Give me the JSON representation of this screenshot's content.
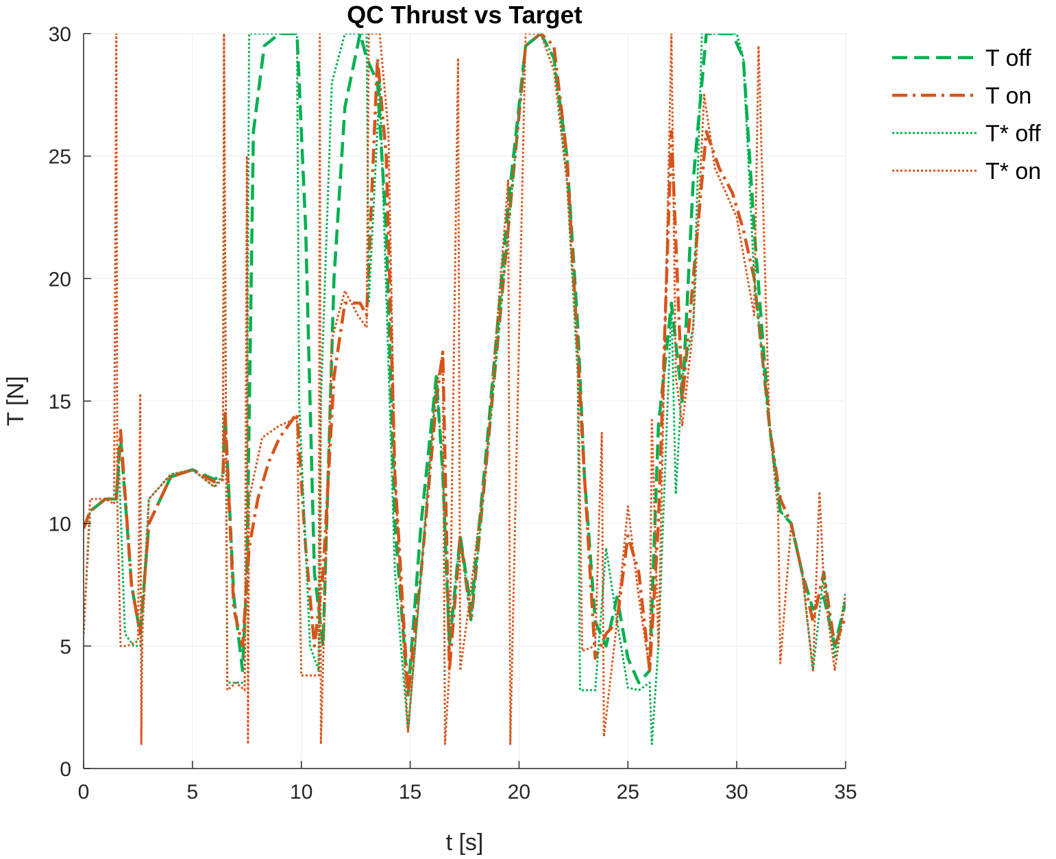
{
  "chart_data": {
    "type": "line",
    "title": "QC Thrust vs Target",
    "xlabel": "t [s]",
    "ylabel": "T [N]",
    "xlim": [
      0,
      35
    ],
    "ylim": [
      0,
      30
    ],
    "xticks": [
      0,
      5,
      10,
      15,
      20,
      25,
      30,
      35
    ],
    "yticks": [
      0,
      5,
      10,
      15,
      20,
      25,
      30
    ],
    "grid": true,
    "legend_position": "outside-top-right",
    "series": [
      {
        "name": "T off",
        "color": "#00b050",
        "style": "dashed",
        "x": [
          0,
          0.3,
          1,
          1.5,
          1.7,
          2.2,
          2.6,
          3.0,
          4.0,
          5.0,
          6.0,
          6.4,
          6.5,
          6.9,
          7.3,
          7.5,
          7.8,
          8.3,
          9.0,
          9.8,
          10.2,
          10.6,
          11.0,
          11.5,
          12.0,
          12.7,
          13.0,
          13.5,
          13.9,
          14.3,
          14.9,
          15.5,
          16.2,
          16.5,
          16.8,
          17.3,
          17.8,
          18.5,
          19.5,
          20.3,
          21.0,
          21.6,
          22.2,
          22.7,
          23.0,
          23.5,
          24.0,
          24.5,
          25.0,
          25.5,
          26.0,
          26.4,
          27.0,
          27.5,
          28.0,
          28.6,
          29.2,
          29.8,
          30.3,
          30.8,
          31.5,
          32.0,
          32.5,
          33.0,
          33.5,
          34.0,
          34.5,
          35.0
        ],
        "y": [
          9.8,
          10.5,
          11.0,
          11.0,
          13.5,
          7.5,
          5.5,
          10.0,
          11.9,
          12.2,
          11.8,
          12.0,
          14.5,
          7.0,
          4.0,
          8.0,
          26.0,
          29.5,
          30.0,
          30.0,
          22.0,
          8.0,
          5.0,
          20.0,
          27.0,
          30.0,
          29.0,
          28.0,
          22.0,
          10.0,
          3.0,
          10.0,
          16.0,
          12.0,
          5.0,
          9.5,
          6.5,
          13.0,
          23.0,
          29.5,
          30.0,
          29.0,
          25.0,
          18.0,
          12.0,
          6.0,
          5.0,
          7.0,
          4.5,
          3.5,
          4.0,
          14.0,
          19.0,
          15.0,
          24.0,
          30.0,
          30.0,
          30.0,
          29.0,
          22.0,
          14.0,
          10.5,
          10.0,
          8.0,
          6.5,
          7.0,
          5.0,
          6.8
        ]
      },
      {
        "name": "T on",
        "color": "#d95319",
        "style": "dashdot",
        "x": [
          0,
          0.3,
          1,
          1.5,
          1.7,
          2.2,
          2.6,
          3.0,
          4.0,
          5.0,
          6.0,
          6.4,
          6.5,
          6.9,
          7.3,
          7.6,
          8.0,
          8.5,
          9.0,
          9.8,
          10.2,
          10.6,
          11.0,
          11.5,
          12.0,
          12.7,
          13.0,
          13.5,
          13.9,
          14.3,
          14.9,
          15.5,
          16.2,
          16.5,
          16.8,
          17.3,
          17.8,
          18.5,
          19.5,
          20.3,
          21.0,
          21.6,
          22.2,
          22.7,
          23.0,
          23.5,
          24.0,
          24.5,
          25.0,
          25.5,
          26.0,
          26.4,
          27.0,
          27.5,
          28.0,
          28.6,
          29.2,
          29.8,
          30.3,
          30.8,
          31.5,
          32.0,
          32.5,
          33.0,
          33.5,
          34.0,
          34.5,
          35.0
        ],
        "y": [
          9.8,
          10.5,
          11.0,
          11.0,
          13.8,
          7.5,
          5.5,
          10.0,
          11.9,
          12.2,
          11.7,
          11.8,
          14.5,
          6.5,
          5.0,
          9.0,
          11.0,
          12.5,
          13.5,
          14.5,
          9.0,
          5.0,
          8.0,
          16.0,
          19.0,
          19.0,
          18.5,
          29.0,
          25.0,
          12.0,
          3.0,
          8.0,
          15.0,
          17.0,
          4.0,
          9.5,
          6.0,
          12.5,
          22.0,
          29.5,
          30.0,
          29.5,
          25.0,
          17.0,
          12.0,
          4.5,
          5.5,
          6.0,
          9.5,
          8.0,
          4.0,
          10.0,
          26.0,
          15.0,
          20.0,
          26.0,
          24.5,
          23.5,
          22.0,
          20.0,
          14.0,
          11.0,
          10.0,
          8.0,
          6.0,
          8.0,
          5.0,
          6.2
        ]
      },
      {
        "name": "T* off",
        "color": "#00b050",
        "style": "dotted",
        "x": [
          0,
          0.3,
          1,
          1.5,
          1.6,
          1.9,
          2.3,
          2.6,
          3.0,
          4.0,
          5.0,
          6.0,
          6.4,
          6.45,
          6.6,
          7.0,
          7.4,
          7.5,
          7.6,
          8.3,
          9.8,
          9.9,
          10.4,
          10.8,
          10.9,
          11.4,
          12.0,
          13.0,
          13.1,
          13.6,
          14.3,
          14.9,
          15.5,
          16.2,
          16.5,
          16.8,
          17.3,
          17.8,
          18.5,
          19.5,
          20.3,
          21.0,
          21.6,
          22.2,
          22.7,
          22.8,
          23.1,
          23.5,
          24.0,
          24.5,
          25.0,
          25.5,
          26.0,
          26.1,
          26.4,
          27.0,
          27.2,
          27.5,
          28.0,
          28.4,
          29.0,
          30.0,
          30.3,
          30.8,
          31.5,
          32.0,
          32.5,
          33.0,
          33.5,
          34.0,
          34.5,
          35.0
        ],
        "y": [
          5.5,
          10.5,
          11.0,
          11.0,
          13.0,
          5.5,
          5.0,
          5.0,
          11.0,
          12.0,
          12.2,
          11.5,
          12.0,
          30.0,
          3.5,
          3.5,
          3.5,
          12.0,
          30.0,
          30.0,
          30.0,
          15.0,
          5.0,
          4.0,
          15.0,
          28.0,
          30.0,
          30.0,
          19.0,
          28.0,
          8.0,
          1.5,
          8.0,
          16.0,
          12.0,
          5.0,
          9.5,
          6.0,
          12.5,
          22.0,
          29.5,
          30.0,
          29.0,
          24.0,
          16.0,
          3.2,
          3.2,
          3.2,
          9.0,
          6.0,
          3.3,
          3.2,
          3.5,
          1.0,
          5.0,
          19.0,
          11.2,
          16.0,
          18.0,
          30.0,
          30.0,
          30.0,
          29.0,
          20.0,
          14.0,
          10.5,
          10.0,
          8.0,
          4.0,
          8.0,
          4.5,
          7.2
        ]
      },
      {
        "name": "T* on",
        "color": "#d95319",
        "style": "dotted",
        "x": [
          0,
          0.3,
          1,
          1.4,
          1.5,
          1.55,
          1.7,
          2.0,
          2.5,
          2.6,
          2.65,
          2.7,
          3.0,
          4.0,
          5.0,
          6.0,
          6.4,
          6.45,
          6.6,
          7.0,
          7.4,
          7.5,
          7.55,
          7.6,
          8.2,
          9.0,
          9.8,
          10.0,
          10.4,
          10.8,
          10.85,
          10.9,
          11.4,
          12.0,
          12.6,
          13.0,
          13.1,
          13.6,
          14.0,
          14.3,
          14.9,
          15.5,
          16.2,
          16.5,
          16.6,
          16.8,
          17.2,
          17.3,
          17.6,
          18.5,
          19.5,
          19.6,
          20.3,
          21.0,
          21.6,
          22.2,
          22.7,
          22.9,
          23.5,
          23.8,
          23.9,
          24.5,
          25.0,
          25.5,
          26.0,
          26.1,
          26.4,
          27.0,
          27.2,
          27.5,
          28.0,
          28.5,
          29.0,
          30.0,
          30.3,
          30.8,
          31.0,
          31.5,
          31.9,
          32.0,
          32.5,
          33.0,
          33.5,
          33.8,
          34.0,
          34.5,
          35.0
        ],
        "y": [
          5.5,
          11.0,
          11.0,
          10.8,
          30.0,
          10.8,
          5.0,
          5.0,
          5.2,
          15.3,
          1.0,
          5.5,
          11.0,
          12.0,
          12.2,
          11.5,
          11.8,
          30.0,
          3.2,
          3.5,
          3.2,
          25.0,
          1.0,
          11.0,
          13.5,
          14.0,
          14.3,
          3.8,
          3.8,
          3.8,
          30.0,
          1.0,
          17.5,
          19.5,
          18.5,
          18.0,
          30.0,
          30.0,
          26.0,
          12.0,
          1.5,
          8.0,
          15.5,
          17.0,
          1.0,
          4.0,
          29.0,
          4.0,
          6.0,
          12.5,
          24.0,
          1.0,
          30.0,
          30.0,
          28.5,
          24.0,
          17.0,
          4.8,
          5.0,
          13.7,
          1.3,
          6.0,
          10.7,
          7.0,
          4.0,
          14.3,
          5.0,
          30.0,
          16.0,
          14.0,
          18.0,
          27.5,
          24.5,
          22.5,
          21.0,
          18.5,
          29.5,
          14.0,
          10.5,
          4.3,
          10.0,
          8.0,
          4.0,
          11.3,
          7.5,
          4.0,
          7.0
        ]
      }
    ]
  }
}
